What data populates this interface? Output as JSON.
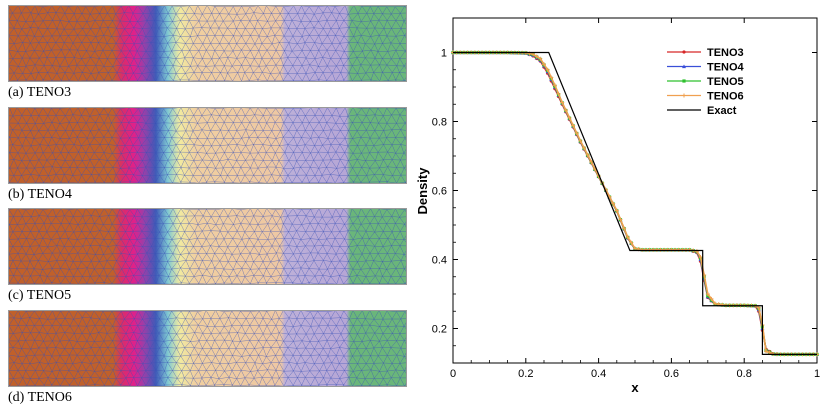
{
  "panels": [
    {
      "caption": "(a) TENO3"
    },
    {
      "caption": "(b) TENO4"
    },
    {
      "caption": "(c) TENO5"
    },
    {
      "caption": "(d) TENO6"
    }
  ],
  "colormap": {
    "stops": [
      {
        "x": 0.0,
        "color": "#c0602a"
      },
      {
        "x": 0.263,
        "color": "#c0602a"
      },
      {
        "x": 0.285,
        "color": "#d92d6a"
      },
      {
        "x": 0.315,
        "color": "#e0208a"
      },
      {
        "x": 0.34,
        "color": "#9a3fa8"
      },
      {
        "x": 0.37,
        "color": "#3f5bb8"
      },
      {
        "x": 0.4,
        "color": "#7fc8d2"
      },
      {
        "x": 0.43,
        "color": "#f1eaa0"
      },
      {
        "x": 0.47,
        "color": "#f0cfa0"
      },
      {
        "x": 0.685,
        "color": "#eec7a3"
      },
      {
        "x": 0.695,
        "color": "#bdb0d8"
      },
      {
        "x": 0.85,
        "color": "#b6a6d6"
      },
      {
        "x": 0.86,
        "color": "#6ab67a"
      },
      {
        "x": 1.0,
        "color": "#6ab67a"
      }
    ],
    "mesh_line_color": "#3a52b8"
  },
  "chart_data": {
    "type": "line",
    "xlabel": "x",
    "ylabel": "Density",
    "xlim": [
      0,
      1
    ],
    "ylim": [
      0.1,
      1.1
    ],
    "xticks": [
      0,
      0.2,
      0.4,
      0.6,
      0.8,
      1
    ],
    "xtick_labels": [
      "0",
      "0.2",
      "0.4",
      "0.6",
      "0.8",
      "1"
    ],
    "yticks": [
      0.2,
      0.4,
      0.6,
      0.8,
      1
    ],
    "ytick_labels": [
      "0.2",
      "0.4",
      "0.6",
      "0.8",
      "1"
    ],
    "legend_position": "top-right",
    "series": [
      {
        "name": "TENO3",
        "color": "#d62728",
        "marker": "circle",
        "x": [
          0,
          0.05,
          0.1,
          0.15,
          0.2,
          0.22,
          0.24,
          0.26,
          0.28,
          0.3,
          0.35,
          0.4,
          0.45,
          0.48,
          0.5,
          0.52,
          0.55,
          0.6,
          0.65,
          0.67,
          0.68,
          0.69,
          0.7,
          0.72,
          0.75,
          0.8,
          0.83,
          0.84,
          0.85,
          0.86,
          0.88,
          0.9,
          0.95,
          1.0
        ],
        "y": [
          1.0,
          1.0,
          1.0,
          1.0,
          0.998,
          0.99,
          0.975,
          0.94,
          0.895,
          0.85,
          0.74,
          0.64,
          0.54,
          0.462,
          0.43,
          0.428,
          0.428,
          0.428,
          0.427,
          0.42,
          0.395,
          0.34,
          0.29,
          0.27,
          0.267,
          0.267,
          0.265,
          0.25,
          0.195,
          0.14,
          0.127,
          0.125,
          0.125,
          0.125
        ]
      },
      {
        "name": "TENO4",
        "color": "#3a4fd8",
        "marker": "triangle",
        "x": [
          0,
          0.05,
          0.1,
          0.15,
          0.2,
          0.22,
          0.24,
          0.26,
          0.28,
          0.3,
          0.35,
          0.4,
          0.45,
          0.48,
          0.5,
          0.52,
          0.55,
          0.6,
          0.65,
          0.67,
          0.68,
          0.69,
          0.7,
          0.72,
          0.75,
          0.8,
          0.83,
          0.84,
          0.85,
          0.86,
          0.88,
          0.9,
          0.95,
          1.0
        ],
        "y": [
          1.0,
          1.0,
          1.0,
          1.0,
          0.998,
          0.992,
          0.978,
          0.945,
          0.9,
          0.853,
          0.742,
          0.641,
          0.541,
          0.463,
          0.431,
          0.428,
          0.428,
          0.428,
          0.428,
          0.422,
          0.4,
          0.345,
          0.292,
          0.27,
          0.267,
          0.267,
          0.266,
          0.255,
          0.2,
          0.138,
          0.126,
          0.125,
          0.125,
          0.125
        ]
      },
      {
        "name": "TENO5",
        "color": "#2fc02f",
        "marker": "square",
        "x": [
          0,
          0.05,
          0.1,
          0.15,
          0.2,
          0.22,
          0.24,
          0.26,
          0.28,
          0.3,
          0.35,
          0.4,
          0.45,
          0.48,
          0.5,
          0.52,
          0.55,
          0.6,
          0.65,
          0.67,
          0.68,
          0.69,
          0.7,
          0.72,
          0.75,
          0.8,
          0.83,
          0.84,
          0.85,
          0.86,
          0.88,
          0.9,
          0.95,
          1.0
        ],
        "y": [
          1.0,
          1.0,
          1.0,
          1.0,
          0.999,
          0.994,
          0.98,
          0.948,
          0.902,
          0.854,
          0.743,
          0.641,
          0.541,
          0.464,
          0.431,
          0.428,
          0.428,
          0.428,
          0.428,
          0.423,
          0.404,
          0.35,
          0.295,
          0.27,
          0.267,
          0.267,
          0.266,
          0.258,
          0.205,
          0.136,
          0.126,
          0.125,
          0.125,
          0.125
        ]
      },
      {
        "name": "TENO6",
        "color": "#f0a050",
        "marker": "plus",
        "x": [
          0,
          0.05,
          0.1,
          0.15,
          0.2,
          0.22,
          0.24,
          0.26,
          0.28,
          0.3,
          0.35,
          0.4,
          0.45,
          0.48,
          0.5,
          0.52,
          0.55,
          0.6,
          0.65,
          0.67,
          0.68,
          0.69,
          0.7,
          0.72,
          0.75,
          0.8,
          0.83,
          0.84,
          0.85,
          0.86,
          0.88,
          0.9,
          0.95,
          1.0
        ],
        "y": [
          1.0,
          1.0,
          1.0,
          1.0,
          0.999,
          0.995,
          0.982,
          0.95,
          0.905,
          0.855,
          0.744,
          0.642,
          0.542,
          0.465,
          0.432,
          0.428,
          0.428,
          0.428,
          0.428,
          0.424,
          0.407,
          0.355,
          0.3,
          0.272,
          0.267,
          0.267,
          0.266,
          0.26,
          0.21,
          0.134,
          0.126,
          0.125,
          0.125,
          0.125
        ]
      },
      {
        "name": "Exact",
        "color": "#000000",
        "marker": "none",
        "x": [
          0,
          0.263,
          0.486,
          0.686,
          0.686,
          0.85,
          0.85,
          1.0
        ],
        "y": [
          1.0,
          1.0,
          0.426,
          0.426,
          0.266,
          0.266,
          0.125,
          0.125
        ]
      }
    ]
  }
}
